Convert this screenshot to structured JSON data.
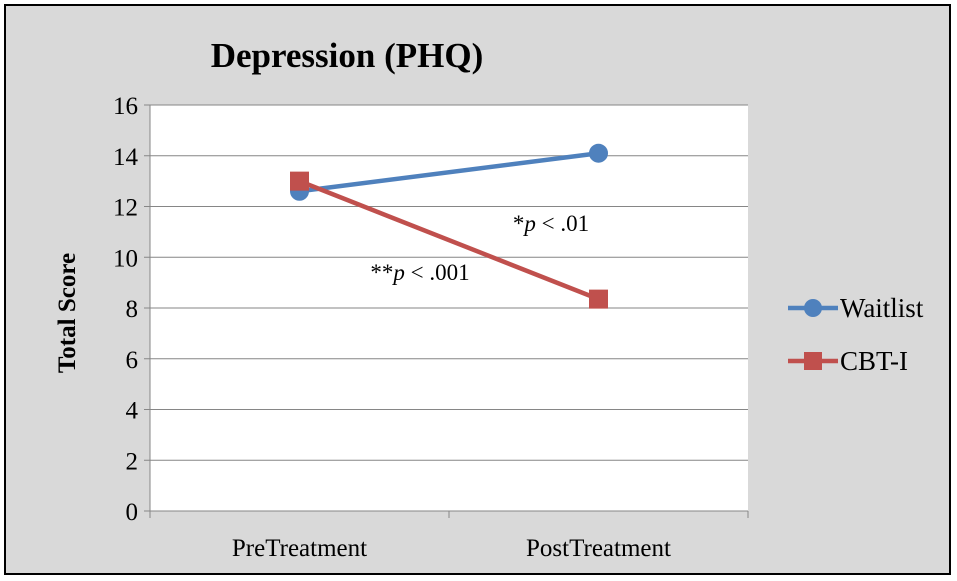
{
  "chart_data": {
    "type": "line",
    "title": "Depression (PHQ)",
    "xlabel": "",
    "ylabel": "Total Score",
    "categories": [
      "PreTreatment",
      "PostTreatment"
    ],
    "ylim": [
      0,
      16
    ],
    "yticks": [
      0,
      2,
      4,
      6,
      8,
      10,
      12,
      14,
      16
    ],
    "grid": true,
    "legend_position": "right",
    "series": [
      {
        "name": "Waitlist",
        "values": [
          12.6,
          14.1
        ],
        "color": "#4f81bd",
        "marker": "circle"
      },
      {
        "name": "CBT-I",
        "values": [
          13.0,
          8.35
        ],
        "color": "#c0504d",
        "marker": "square"
      }
    ],
    "annotations": [
      {
        "prefix": "*",
        "italic": "p",
        "suffix": " < .01"
      },
      {
        "prefix": "**",
        "italic": "p",
        "suffix": " < .001"
      }
    ]
  }
}
